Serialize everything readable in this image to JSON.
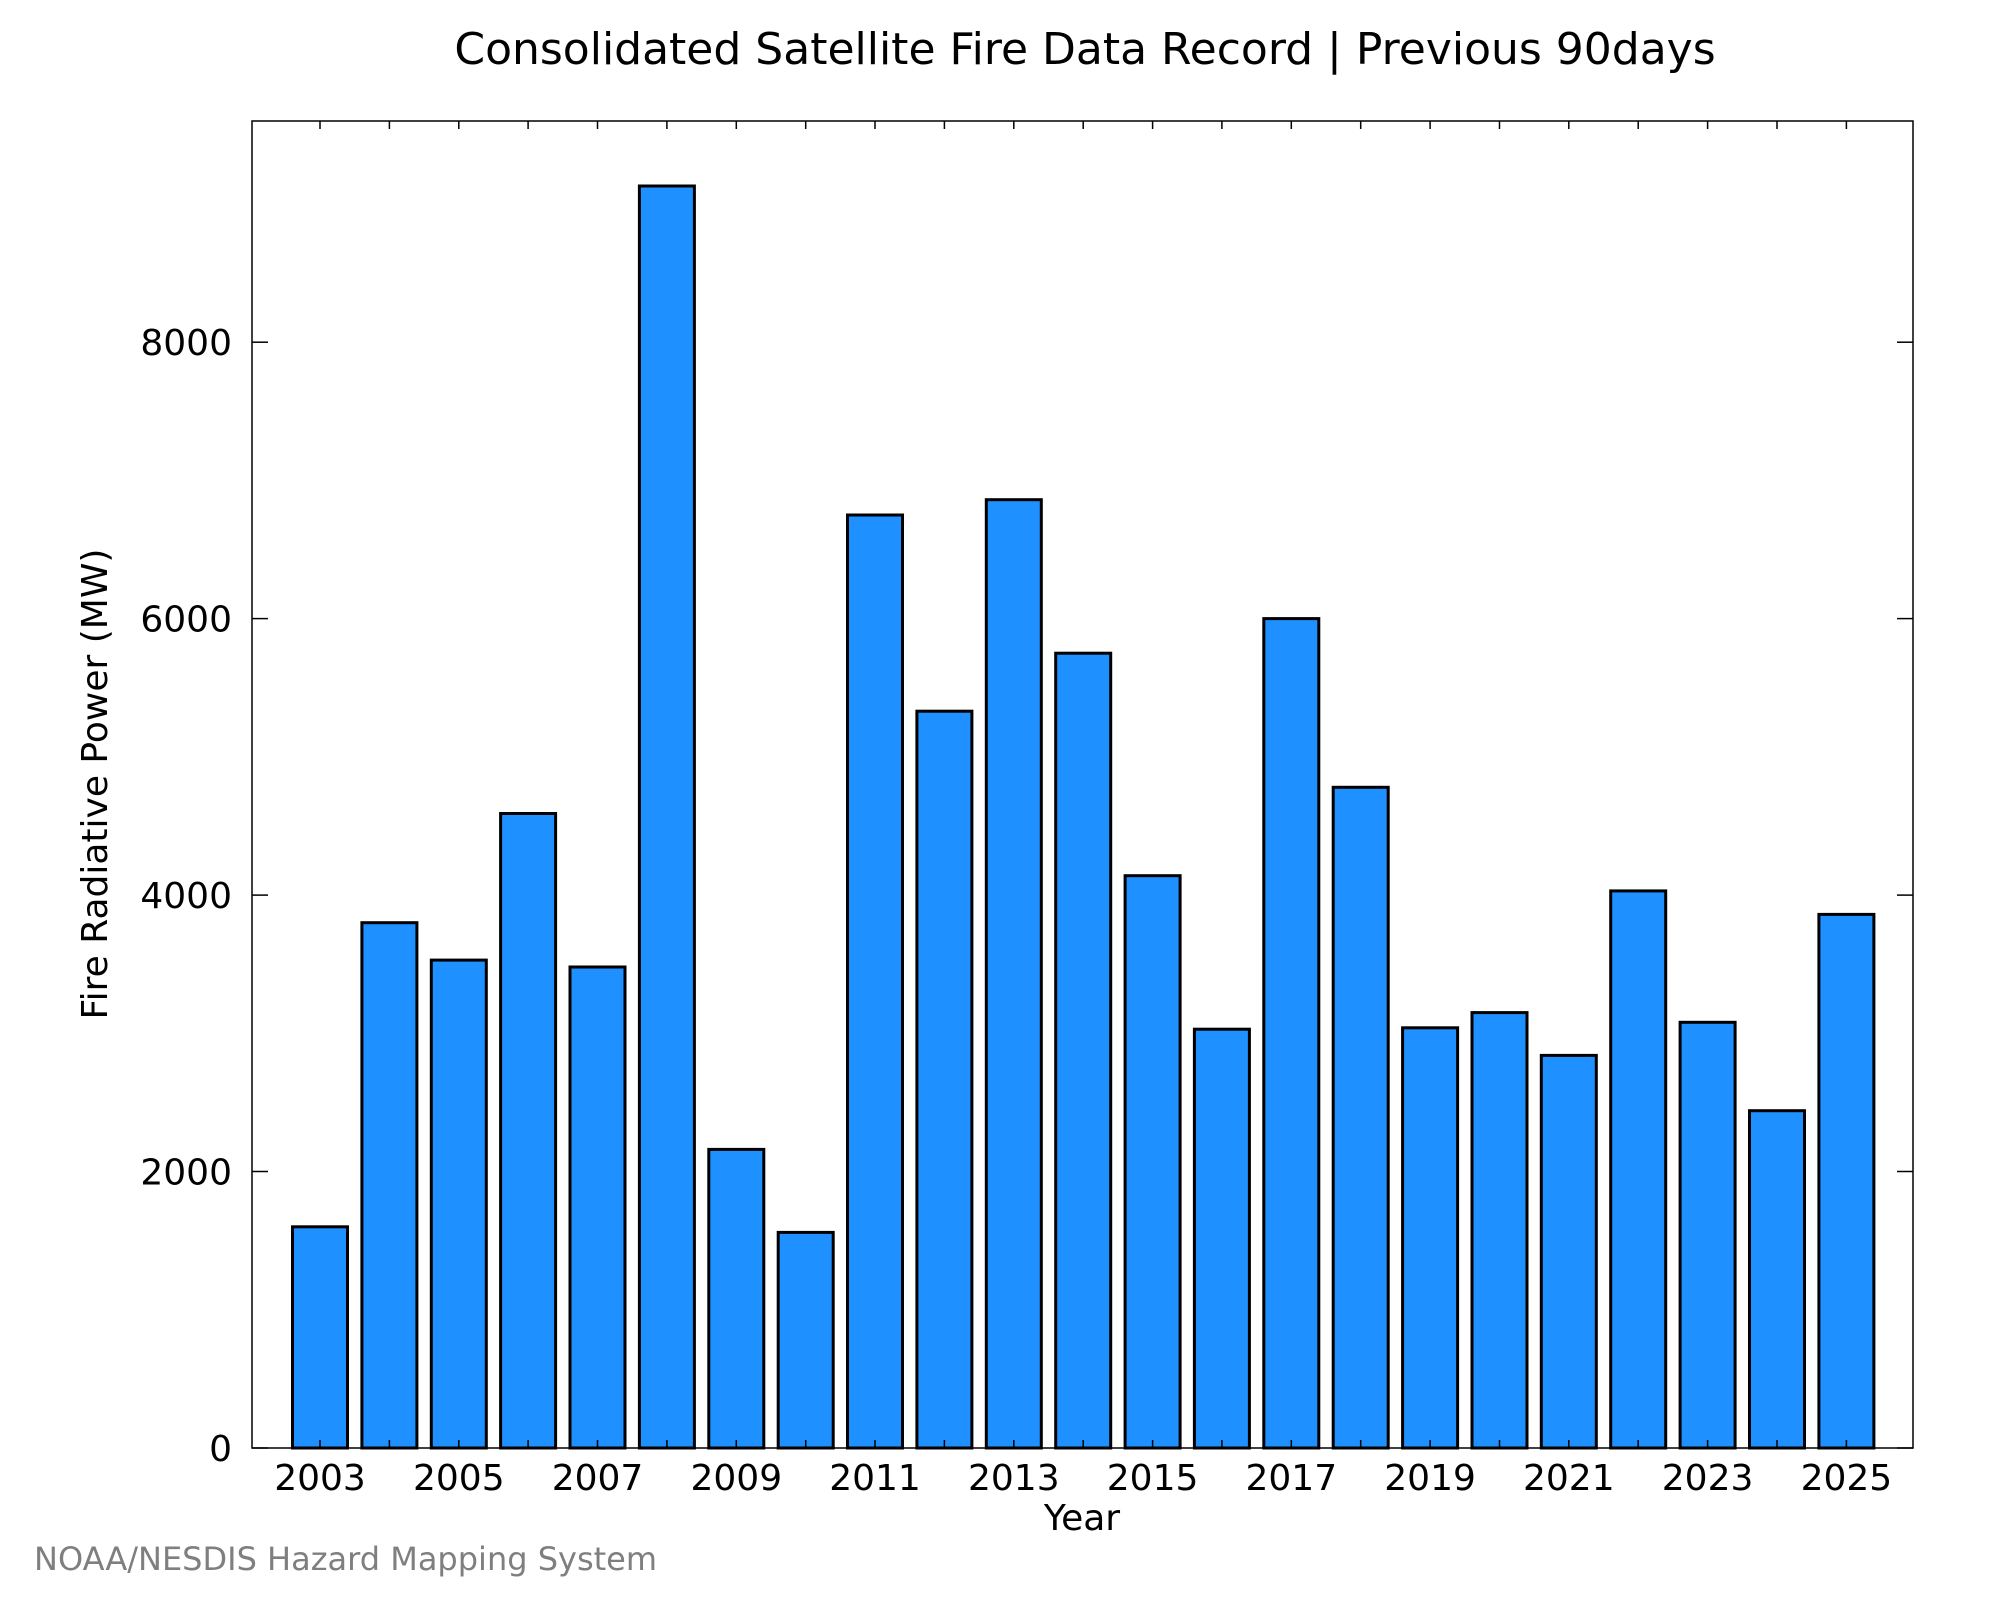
{
  "chart_data": {
    "type": "bar",
    "title": "Consolidated Satellite Fire Data Record | Previous 90days",
    "xlabel": "Year",
    "ylabel": "Fire Radiative Power (MW)",
    "categories": [
      "2003",
      "2004",
      "2005",
      "2006",
      "2007",
      "2008",
      "2009",
      "2010",
      "2011",
      "2012",
      "2013",
      "2014",
      "2015",
      "2016",
      "2017",
      "2018",
      "2019",
      "2020",
      "2021",
      "2022",
      "2023",
      "2024",
      "2025"
    ],
    "values": [
      1600,
      3800,
      3530,
      4590,
      3480,
      9130,
      2160,
      1560,
      6750,
      5330,
      6860,
      5750,
      4140,
      3030,
      6000,
      4780,
      3040,
      3150,
      2840,
      4030,
      3080,
      2440,
      3860
    ],
    "x_tick_labels": [
      "2003",
      "2005",
      "2007",
      "2009",
      "2011",
      "2013",
      "2015",
      "2017",
      "2019",
      "2021",
      "2023",
      "2025"
    ],
    "y_ticks": [
      0,
      2000,
      4000,
      6000,
      8000
    ],
    "ylim": [
      0,
      9600
    ],
    "bar_color": "#1e90ff",
    "edge_color": "#000000",
    "grid": false,
    "legend": "none"
  },
  "footer": {
    "credit": "NOAA/NESDIS Hazard Mapping System"
  }
}
